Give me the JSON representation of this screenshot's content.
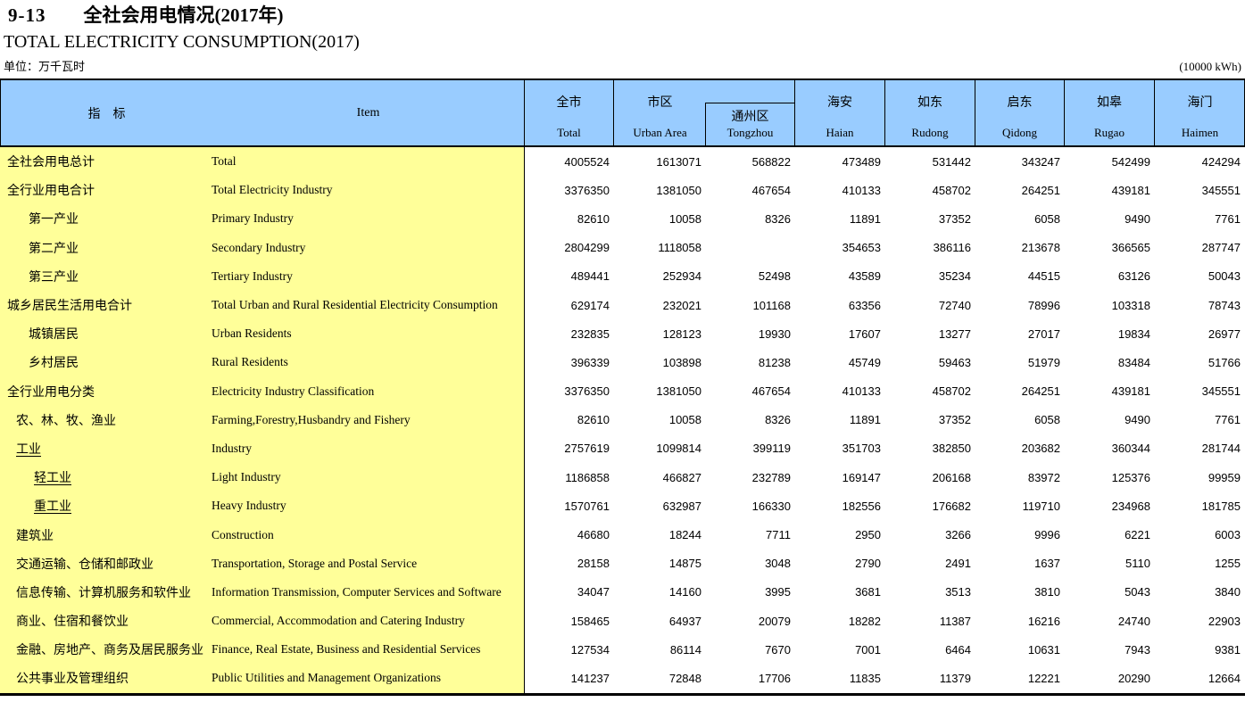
{
  "title": {
    "number": "9-13",
    "zh": "全社会用电情况(2017年)",
    "en": "TOTAL ELECTRICITY CONSUMPTION(2017)"
  },
  "unit": {
    "zh": "单位：万千瓦时",
    "en": "(10000 kWh)"
  },
  "colors": {
    "header_bg": "#99ccff",
    "label_bg": "#ffff99",
    "border": "#000000",
    "text": "#000000"
  },
  "table": {
    "header": {
      "indicator_zh": "指　标",
      "indicator_en": "Item",
      "columns": [
        {
          "zh": "全市",
          "en": "Total"
        },
        {
          "zh": "市区",
          "en": "Urban Area"
        },
        {
          "zh": "通州区",
          "en": "Tongzhou"
        },
        {
          "zh": "海安",
          "en": "Haian"
        },
        {
          "zh": "如东",
          "en": "Rudong"
        },
        {
          "zh": "启东",
          "en": "Qidong"
        },
        {
          "zh": "如皋",
          "en": "Rugao"
        },
        {
          "zh": "海门",
          "en": "Haimen"
        }
      ]
    },
    "rows": [
      {
        "zh": "全社会用电总计",
        "en": "Total",
        "indent": 0,
        "underline": false,
        "values": [
          "4005524",
          "1613071",
          "568822",
          "473489",
          "531442",
          "343247",
          "542499",
          "424294"
        ]
      },
      {
        "zh": "全行业用电合计",
        "en": "Total Electricity Industry",
        "indent": 0,
        "underline": false,
        "values": [
          "3376350",
          "1381050",
          "467654",
          "410133",
          "458702",
          "264251",
          "439181",
          "345551"
        ]
      },
      {
        "zh": "第一产业",
        "en": "Primary Industry",
        "indent": 2,
        "underline": false,
        "values": [
          "82610",
          "10058",
          "8326",
          "11891",
          "37352",
          "6058",
          "9490",
          "7761"
        ]
      },
      {
        "zh": "第二产业",
        "en": "Secondary Industry",
        "indent": 2,
        "underline": false,
        "values": [
          "2804299",
          "1118058",
          "",
          "354653",
          "386116",
          "213678",
          "366565",
          "287747"
        ]
      },
      {
        "zh": "第三产业",
        "en": "Tertiary Industry",
        "indent": 2,
        "underline": false,
        "values": [
          "489441",
          "252934",
          "52498",
          "43589",
          "35234",
          "44515",
          "63126",
          "50043"
        ]
      },
      {
        "zh": "城乡居民生活用电合计",
        "en": "Total Urban and Rural Residential Electricity Consumption",
        "indent": 0,
        "underline": false,
        "values": [
          "629174",
          "232021",
          "101168",
          "63356",
          "72740",
          "78996",
          "103318",
          "78743"
        ]
      },
      {
        "zh": "城镇居民",
        "en": "Urban Residents",
        "indent": 2,
        "underline": false,
        "values": [
          "232835",
          "128123",
          "19930",
          "17607",
          "13277",
          "27017",
          "19834",
          "26977"
        ]
      },
      {
        "zh": "乡村居民",
        "en": "Rural Residents",
        "indent": 2,
        "underline": false,
        "values": [
          "396339",
          "103898",
          "81238",
          "45749",
          "59463",
          "51979",
          "83484",
          "51766"
        ]
      },
      {
        "zh": "全行业用电分类",
        "en": "Electricity Industry Classification",
        "indent": 0,
        "underline": false,
        "values": [
          "3376350",
          "1381050",
          "467654",
          "410133",
          "458702",
          "264251",
          "439181",
          "345551"
        ]
      },
      {
        "zh": "农、林、牧、渔业",
        "en": "Farming,Forestry,Husbandry and Fishery",
        "indent": 1,
        "underline": false,
        "values": [
          "82610",
          "10058",
          "8326",
          "11891",
          "37352",
          "6058",
          "9490",
          "7761"
        ]
      },
      {
        "zh": "工业",
        "en": "Industry",
        "indent": 1,
        "underline": true,
        "values": [
          "2757619",
          "1099814",
          "399119",
          "351703",
          "382850",
          "203682",
          "360344",
          "281744"
        ]
      },
      {
        "zh": "轻工业",
        "en": "Light Industry",
        "indent": 3,
        "underline": true,
        "values": [
          "1186858",
          "466827",
          "232789",
          "169147",
          "206168",
          "83972",
          "125376",
          "99959"
        ]
      },
      {
        "zh": "重工业",
        "en": "Heavy Industry",
        "indent": 3,
        "underline": true,
        "values": [
          "1570761",
          "632987",
          "166330",
          "182556",
          "176682",
          "119710",
          "234968",
          "181785"
        ]
      },
      {
        "zh": "建筑业",
        "en": "Construction",
        "indent": 1,
        "underline": false,
        "values": [
          "46680",
          "18244",
          "7711",
          "2950",
          "3266",
          "9996",
          "6221",
          "6003"
        ]
      },
      {
        "zh": "交通运输、仓储和邮政业",
        "en": "Transportation, Storage and Postal Service",
        "indent": 1,
        "underline": false,
        "values": [
          "28158",
          "14875",
          "3048",
          "2790",
          "2491",
          "1637",
          "5110",
          "1255"
        ]
      },
      {
        "zh": "信息传输、计算机服务和软件业",
        "en": "Information Transmission, Computer Services and Software",
        "indent": 1,
        "underline": false,
        "values": [
          "34047",
          "14160",
          "3995",
          "3681",
          "3513",
          "3810",
          "5043",
          "3840"
        ]
      },
      {
        "zh": "商业、住宿和餐饮业",
        "en": "Commercial, Accommodation and Catering Industry",
        "indent": 1,
        "underline": false,
        "values": [
          "158465",
          "64937",
          "20079",
          "18282",
          "11387",
          "16216",
          "24740",
          "22903"
        ]
      },
      {
        "zh": "金融、房地产、商务及居民服务业",
        "en": "Finance, Real Estate, Business and Residential Services",
        "indent": 1,
        "underline": false,
        "values": [
          "127534",
          "86114",
          "7670",
          "7001",
          "6464",
          "10631",
          "7943",
          "9381"
        ]
      },
      {
        "zh": "公共事业及管理组织",
        "en": "Public Utilities and Management Organizations",
        "indent": 1,
        "underline": false,
        "values": [
          "141237",
          "72848",
          "17706",
          "11835",
          "11379",
          "12221",
          "20290",
          "12664"
        ]
      }
    ]
  }
}
